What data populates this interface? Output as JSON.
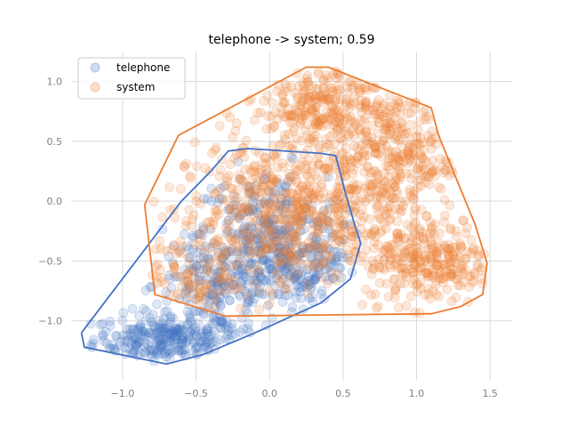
{
  "chart_data": {
    "type": "scatter",
    "title": "telephone -> system; 0.59",
    "xlabel": "",
    "ylabel": "",
    "xlim": [
      -1.35,
      1.65
    ],
    "ylim": [
      -1.5,
      1.25
    ],
    "xticks": [
      -1.0,
      -0.5,
      0.0,
      0.5,
      1.0,
      1.5
    ],
    "yticks": [
      -1.0,
      -0.5,
      0.0,
      0.5,
      1.0
    ],
    "xtick_labels": [
      "−1.0",
      "−0.5",
      "0.0",
      "0.5",
      "1.0",
      "1.5"
    ],
    "ytick_labels": [
      "−1.0",
      "−0.5",
      "0.0",
      "0.5",
      "1.0"
    ],
    "grid": true,
    "legend_position": "top-left",
    "series": [
      {
        "name": "telephone",
        "color": "#4472c4",
        "clusters": [
          {
            "cx": -0.7,
            "cy": -1.15,
            "sx": 0.25,
            "sy": 0.1,
            "n": 260
          },
          {
            "cx": -0.35,
            "cy": -0.7,
            "sx": 0.22,
            "sy": 0.22,
            "n": 200
          },
          {
            "cx": 0.0,
            "cy": -0.3,
            "sx": 0.25,
            "sy": 0.28,
            "n": 300
          },
          {
            "cx": 0.25,
            "cy": -0.6,
            "sx": 0.18,
            "sy": 0.2,
            "n": 120
          }
        ],
        "hull": [
          [
            -1.28,
            -1.1
          ],
          [
            -1.26,
            -1.22
          ],
          [
            -0.7,
            -1.36
          ],
          [
            -0.45,
            -1.28
          ],
          [
            -0.1,
            -1.1
          ],
          [
            0.35,
            -0.85
          ],
          [
            0.55,
            -0.65
          ],
          [
            0.62,
            -0.35
          ],
          [
            0.58,
            -0.2
          ],
          [
            0.52,
            0.05
          ],
          [
            0.45,
            0.38
          ],
          [
            0.35,
            0.4
          ],
          [
            -0.15,
            0.44
          ],
          [
            -0.28,
            0.42
          ],
          [
            -0.4,
            0.25
          ],
          [
            -0.6,
            0.0
          ],
          [
            -1.28,
            -1.1
          ]
        ]
      },
      {
        "name": "system",
        "color": "#ed7d31",
        "clusters": [
          {
            "cx": 0.4,
            "cy": 0.75,
            "sx": 0.28,
            "sy": 0.2,
            "n": 320
          },
          {
            "cx": 0.85,
            "cy": 0.35,
            "sx": 0.25,
            "sy": 0.28,
            "n": 300
          },
          {
            "cx": 1.1,
            "cy": -0.5,
            "sx": 0.22,
            "sy": 0.18,
            "n": 280
          },
          {
            "cx": -0.05,
            "cy": -0.1,
            "sx": 0.3,
            "sy": 0.3,
            "n": 380
          },
          {
            "cx": -0.5,
            "cy": -0.6,
            "sx": 0.18,
            "sy": 0.18,
            "n": 100
          },
          {
            "cx": 0.45,
            "cy": -0.1,
            "sx": 0.25,
            "sy": 0.3,
            "n": 200
          }
        ],
        "hull": [
          [
            -0.62,
            0.55
          ],
          [
            -0.85,
            -0.03
          ],
          [
            -0.78,
            -0.78
          ],
          [
            -0.3,
            -0.96
          ],
          [
            1.1,
            -0.94
          ],
          [
            1.3,
            -0.88
          ],
          [
            1.45,
            -0.78
          ],
          [
            1.48,
            -0.52
          ],
          [
            1.4,
            -0.2
          ],
          [
            1.15,
            0.55
          ],
          [
            1.1,
            0.78
          ],
          [
            0.4,
            1.12
          ],
          [
            0.25,
            1.12
          ],
          [
            -0.62,
            0.55
          ]
        ]
      }
    ]
  }
}
